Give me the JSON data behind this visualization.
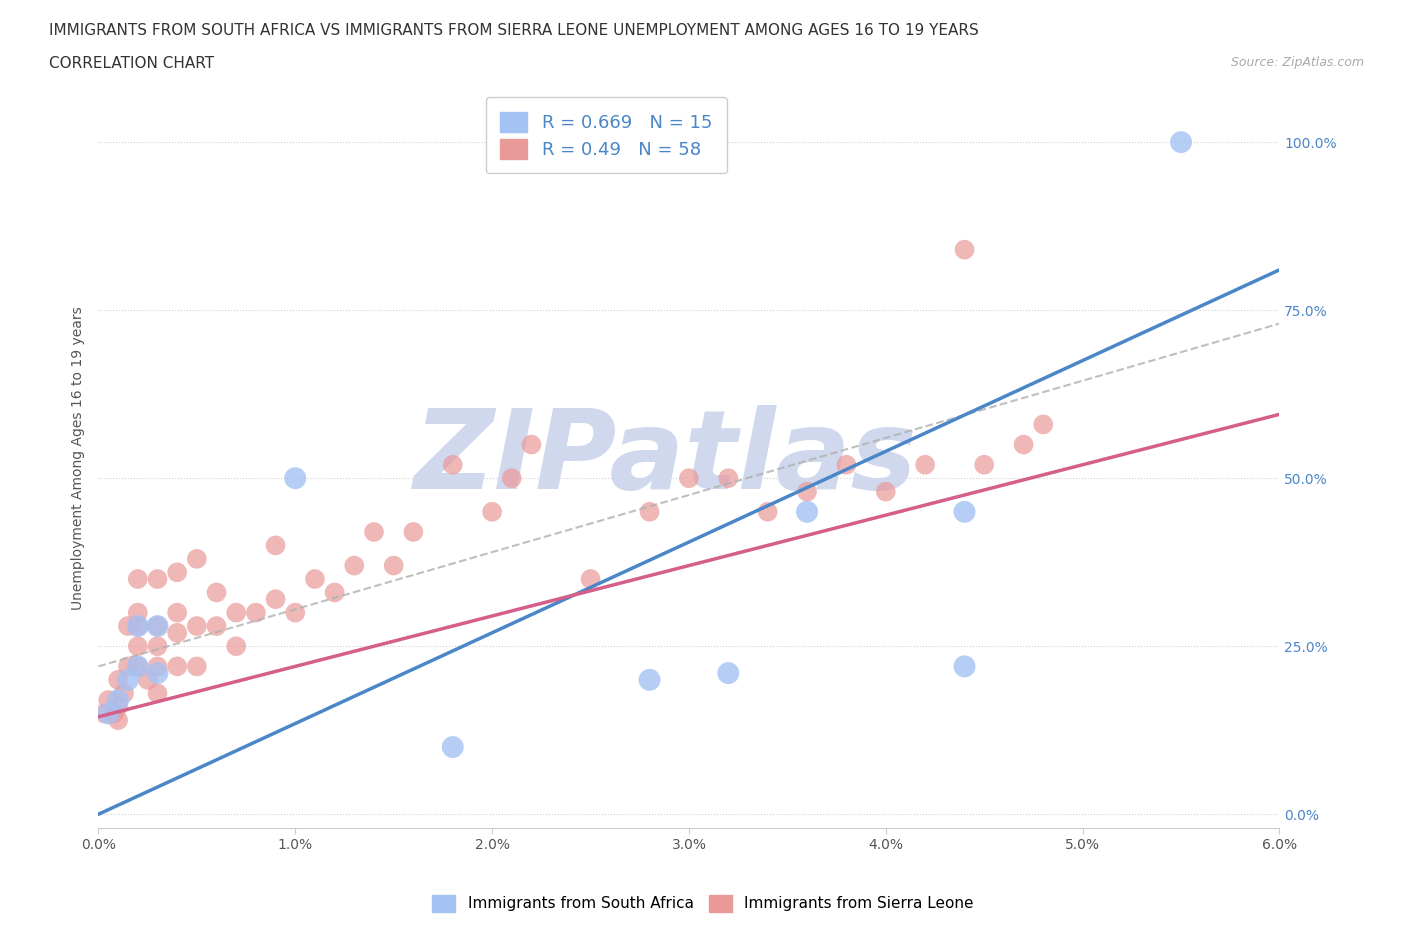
{
  "title_line1": "IMMIGRANTS FROM SOUTH AFRICA VS IMMIGRANTS FROM SIERRA LEONE UNEMPLOYMENT AMONG AGES 16 TO 19 YEARS",
  "title_line2": "CORRELATION CHART",
  "source_text": "Source: ZipAtlas.com",
  "ylabel": "Unemployment Among Ages 16 to 19 years",
  "xlim": [
    0.0,
    0.06
  ],
  "ylim": [
    -0.02,
    1.08
  ],
  "xticks": [
    0.0,
    0.01,
    0.02,
    0.03,
    0.04,
    0.05,
    0.06
  ],
  "xticklabels": [
    "0.0%",
    "1.0%",
    "2.0%",
    "3.0%",
    "4.0%",
    "5.0%",
    "6.0%"
  ],
  "yticks": [
    0.0,
    0.25,
    0.5,
    0.75,
    1.0
  ],
  "yticklabels": [
    "0.0%",
    "25.0%",
    "50.0%",
    "75.0%",
    "100.0%"
  ],
  "blue_color": "#a4c2f4",
  "pink_color": "#ea9999",
  "blue_line_color": "#4a86c8",
  "pink_line_color": "#d45f8a",
  "blue_R": 0.669,
  "blue_N": 15,
  "pink_R": 0.49,
  "pink_N": 58,
  "south_africa_x": [
    0.0005,
    0.001,
    0.0015,
    0.002,
    0.002,
    0.003,
    0.003,
    0.01,
    0.018,
    0.028,
    0.032,
    0.036,
    0.044,
    0.044,
    0.055
  ],
  "south_africa_y": [
    0.15,
    0.17,
    0.2,
    0.22,
    0.28,
    0.21,
    0.28,
    0.5,
    0.1,
    0.2,
    0.21,
    0.45,
    0.22,
    0.45,
    1.0
  ],
  "sierra_leone_x": [
    0.0003,
    0.0005,
    0.0008,
    0.001,
    0.001,
    0.001,
    0.0013,
    0.0015,
    0.0015,
    0.002,
    0.002,
    0.002,
    0.002,
    0.002,
    0.0025,
    0.003,
    0.003,
    0.003,
    0.003,
    0.003,
    0.004,
    0.004,
    0.004,
    0.004,
    0.005,
    0.005,
    0.005,
    0.006,
    0.006,
    0.007,
    0.007,
    0.008,
    0.009,
    0.009,
    0.01,
    0.011,
    0.012,
    0.013,
    0.014,
    0.015,
    0.016,
    0.018,
    0.02,
    0.021,
    0.022,
    0.025,
    0.028,
    0.03,
    0.032,
    0.034,
    0.036,
    0.038,
    0.04,
    0.042,
    0.044,
    0.045,
    0.047,
    0.048
  ],
  "sierra_leone_y": [
    0.15,
    0.17,
    0.15,
    0.14,
    0.16,
    0.2,
    0.18,
    0.22,
    0.28,
    0.22,
    0.25,
    0.28,
    0.3,
    0.35,
    0.2,
    0.18,
    0.22,
    0.25,
    0.28,
    0.35,
    0.22,
    0.27,
    0.3,
    0.36,
    0.22,
    0.28,
    0.38,
    0.28,
    0.33,
    0.25,
    0.3,
    0.3,
    0.32,
    0.4,
    0.3,
    0.35,
    0.33,
    0.37,
    0.42,
    0.37,
    0.42,
    0.52,
    0.45,
    0.5,
    0.55,
    0.35,
    0.45,
    0.5,
    0.5,
    0.45,
    0.48,
    0.52,
    0.48,
    0.52,
    0.84,
    0.52,
    0.55,
    0.58
  ],
  "watermark_text": "ZIPatlas",
  "watermark_color": "#d0d8ee",
  "background_color": "#ffffff",
  "grid_color": "#cccccc",
  "title_fontsize": 11,
  "axis_label_fontsize": 10,
  "tick_fontsize": 10,
  "tick_color": "#4a86c8",
  "blue_line_intercept": 0.0,
  "blue_line_slope": 13.5,
  "pink_line_intercept": 0.145,
  "pink_line_slope": 7.5
}
